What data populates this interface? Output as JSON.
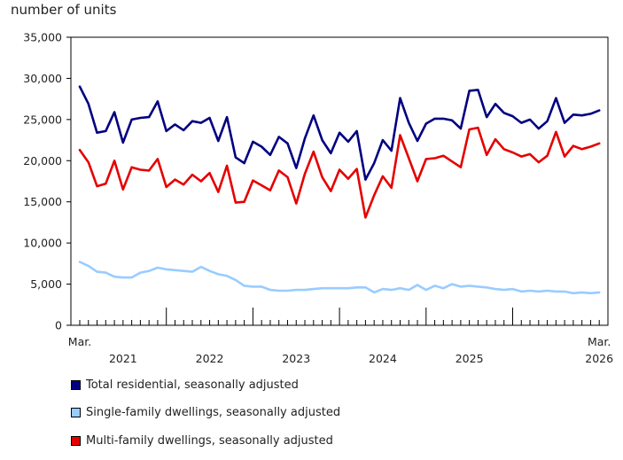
{
  "chart_data": {
    "type": "line",
    "title": "",
    "ylabel": "number of units",
    "xlabel": "",
    "ylim": [
      0,
      35000
    ],
    "y_ticks": [
      0,
      5000,
      10000,
      15000,
      20000,
      25000,
      30000,
      35000
    ],
    "y_tick_labels": [
      "0",
      "5,000",
      "10,000",
      "15,000",
      "20,000",
      "25,000",
      "30,000",
      "35,000"
    ],
    "x_start": "2021-03",
    "x_end": "2026-03",
    "x_end_labels": {
      "start_month": "Mar.",
      "end_month": "Mar.",
      "end_year": "2026"
    },
    "year_labels": [
      {
        "label": "2021",
        "month_index": 5
      },
      {
        "label": "2022",
        "month_index": 15
      },
      {
        "label": "2023",
        "month_index": 25
      },
      {
        "label": "2024",
        "month_index": 35
      },
      {
        "label": "2025",
        "month_index": 45
      }
    ],
    "year_boundaries": [
      10,
      20,
      30,
      40,
      50
    ],
    "grid": false,
    "legend_position": "bottom",
    "series": [
      {
        "name": "Total residential, seasonally adjusted",
        "color": "#000080",
        "values": [
          29000,
          26900,
          23400,
          23600,
          25900,
          22200,
          25000,
          25200,
          25300,
          27200,
          23600,
          24400,
          23700,
          24800,
          24600,
          25200,
          22400,
          25300,
          20400,
          19700,
          22300,
          21700,
          20700,
          22900,
          22100,
          19100,
          22700,
          25500,
          22500,
          20900,
          23400,
          22300,
          23600,
          17700,
          19700,
          22500,
          21200,
          27600,
          24600,
          22400,
          24500,
          25100,
          25100,
          24900,
          23900,
          28500,
          28600,
          25300,
          26900,
          25800,
          25400,
          24600,
          25000,
          23900,
          24800,
          27600,
          24600,
          25600,
          25500,
          25700,
          26100
        ]
      },
      {
        "name": "Single-family dwellings, seasonally adjusted",
        "color": "#99ccff",
        "values": [
          7700,
          7200,
          6500,
          6400,
          5900,
          5800,
          5800,
          6400,
          6600,
          7000,
          6800,
          6700,
          6600,
          6500,
          7100,
          6600,
          6200,
          6000,
          5500,
          4800,
          4700,
          4700,
          4300,
          4200,
          4200,
          4300,
          4300,
          4400,
          4500,
          4500,
          4500,
          4500,
          4600,
          4600,
          4000,
          4400,
          4300,
          4500,
          4300,
          4900,
          4300,
          4800,
          4500,
          5000,
          4700,
          4800,
          4700,
          4600,
          4400,
          4300,
          4400,
          4100,
          4200,
          4100,
          4200,
          4100,
          4100,
          3900,
          4000,
          3900,
          4000
        ]
      },
      {
        "name": "Multi-family dwellings, seasonally adjusted",
        "color": "#e50000",
        "values": [
          21300,
          19800,
          16900,
          17200,
          20000,
          16500,
          19200,
          18900,
          18800,
          20200,
          16800,
          17700,
          17100,
          18300,
          17500,
          18500,
          16200,
          19400,
          14900,
          15000,
          17600,
          17000,
          16400,
          18800,
          18000,
          14800,
          18400,
          21100,
          18000,
          16300,
          18900,
          17800,
          19000,
          13100,
          15800,
          18100,
          16700,
          23100,
          20300,
          17500,
          20200,
          20300,
          20600,
          19900,
          19200,
          23800,
          24000,
          20700,
          22600,
          21400,
          21000,
          20500,
          20800,
          19800,
          20600,
          23500,
          20500,
          21800,
          21400,
          21700,
          22100
        ]
      }
    ]
  }
}
